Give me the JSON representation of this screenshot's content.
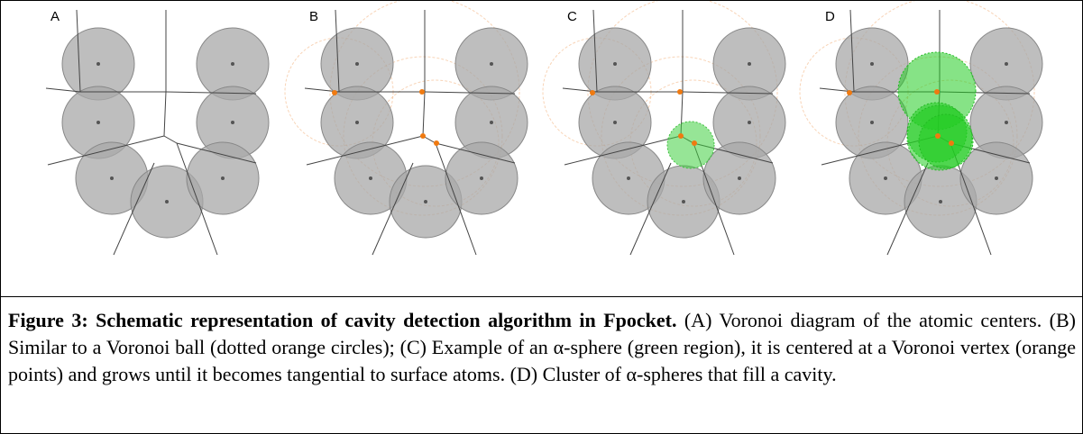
{
  "figure": {
    "panels": [
      {
        "label": "A"
      },
      {
        "label": "B"
      },
      {
        "label": "C"
      },
      {
        "label": "D"
      }
    ],
    "caption": {
      "bold": "Figure 3: Schematic representation of cavity detection algorithm in Fpocket.",
      "text": " (A) Voronoi diagram of the atomic centers. (B) Similar to a Voronoi ball (dotted orange circles); (C) Example of an α-sphere (green region), it is centered at a Voronoi vertex (orange points) and grows until it becomes tangential to surface atoms. (D) Cluster of α-spheres that fill a cavity."
    }
  }
}
